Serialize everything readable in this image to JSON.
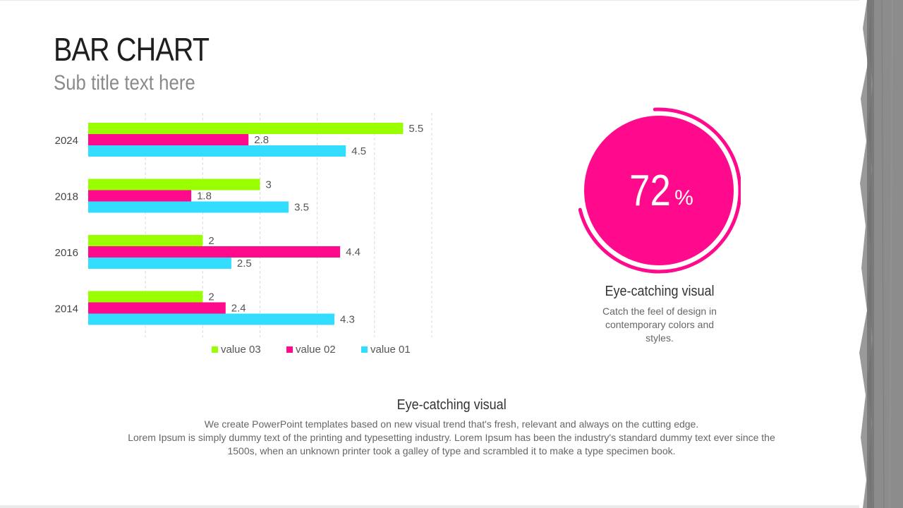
{
  "title": {
    "bold": "BAR",
    "rest": " CHART"
  },
  "subtitle": "Sub title text here",
  "colors": {
    "value03": "#99ff00",
    "value02": "#ff0a8c",
    "value01": "#33ddff",
    "accent": "#ff0a8c"
  },
  "chart_data": {
    "type": "bar",
    "orientation": "horizontal",
    "categories": [
      "2024",
      "2018",
      "2016",
      "2014"
    ],
    "series": [
      {
        "name": "value 03",
        "values": [
          5.5,
          3,
          2,
          2
        ]
      },
      {
        "name": "value 02",
        "values": [
          2.8,
          1.8,
          4.4,
          2.4
        ]
      },
      {
        "name": "value 01",
        "values": [
          4.5,
          3.5,
          2.5,
          4.3
        ]
      }
    ],
    "xlim": [
      0,
      6
    ],
    "grid": "vertical dashed",
    "legend": "bottom"
  },
  "panel": {
    "percent_value": 72,
    "percent_number": "72",
    "percent_sign": "%",
    "heading": "Eye-catching visual",
    "text": "Catch the feel of design in contemporary colors and styles."
  },
  "bottom": {
    "heading": "Eye-catching visual",
    "line1": "We create PowerPoint templates based on new visual trend that's fresh, relevant and always on the cutting edge.",
    "line2": "Lorem Ipsum is simply dummy text of the printing and typesetting industry. Lorem Ipsum has been the industry's standard dummy text ever since the 1500s, when an unknown printer took a galley of type and scrambled it to make a type specimen book."
  }
}
